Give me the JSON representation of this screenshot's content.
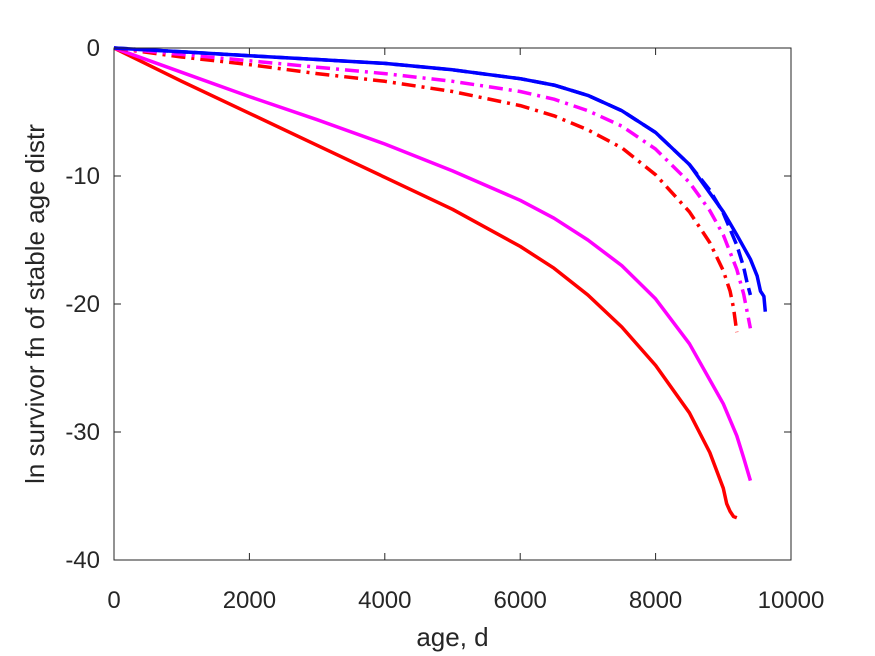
{
  "chart_data": {
    "type": "line",
    "title": "",
    "xlabel": "age, d",
    "ylabel": "ln survivor fn of stable age distr",
    "xlim": [
      0,
      10000
    ],
    "ylim": [
      -40,
      0
    ],
    "xticks": [
      0,
      2000,
      4000,
      6000,
      8000,
      10000
    ],
    "yticks": [
      -40,
      -30,
      -20,
      -10,
      0
    ],
    "xtick_labels": [
      "0",
      "2000",
      "4000",
      "6000",
      "8000",
      "10000"
    ],
    "ytick_labels": [
      "-40",
      "-30",
      "-20",
      "-10",
      "0"
    ],
    "grid": false,
    "legend": "none",
    "series": [
      {
        "color": "#ff0000",
        "style": "solid",
        "x": [
          0,
          1000,
          2000,
          3000,
          4000,
          5000,
          6000,
          6500,
          7000,
          7500,
          8000,
          8500,
          8800,
          9000,
          9050,
          9100,
          9150,
          9200
        ],
        "y": [
          0,
          -2.6,
          -5.1,
          -7.6,
          -10.1,
          -12.6,
          -15.5,
          -17.2,
          -19.3,
          -21.8,
          -24.8,
          -28.5,
          -31.6,
          -34.4,
          -35.6,
          -36.2,
          -36.6,
          -36.7
        ]
      },
      {
        "color": "#ff00ff",
        "style": "solid",
        "x": [
          0,
          1000,
          2000,
          3000,
          4000,
          5000,
          6000,
          6500,
          7000,
          7500,
          8000,
          8500,
          9000,
          9200,
          9300,
          9400
        ],
        "y": [
          0,
          -1.9,
          -3.8,
          -5.6,
          -7.5,
          -9.6,
          -11.9,
          -13.3,
          -15.0,
          -17.0,
          -19.6,
          -23.1,
          -27.8,
          -30.3,
          -32.0,
          -33.8
        ]
      },
      {
        "color": "#ff0000",
        "style": "dashdot",
        "x": [
          0,
          1000,
          2000,
          3000,
          4000,
          5000,
          6000,
          6500,
          7000,
          7500,
          8000,
          8500,
          8800,
          9000,
          9100,
          9150,
          9200
        ],
        "y": [
          0,
          -0.7,
          -1.3,
          -2.0,
          -2.6,
          -3.4,
          -4.5,
          -5.3,
          -6.4,
          -7.8,
          -9.9,
          -12.8,
          -15.2,
          -17.4,
          -19.0,
          -20.3,
          -22.2
        ]
      },
      {
        "color": "#ff00ff",
        "style": "dashdot",
        "x": [
          0,
          1000,
          2000,
          3000,
          4000,
          5000,
          6000,
          6500,
          7000,
          7500,
          8000,
          8500,
          8800,
          9000,
          9200,
          9300,
          9400
        ],
        "y": [
          0,
          -0.5,
          -1.0,
          -1.5,
          -2.0,
          -2.6,
          -3.4,
          -4.0,
          -4.9,
          -6.1,
          -7.9,
          -10.5,
          -12.7,
          -14.6,
          -17.3,
          -19.2,
          -21.9
        ]
      },
      {
        "color": "#0000ff",
        "style": "dashed",
        "x": [
          0,
          1000,
          2000,
          3000,
          4000,
          5000,
          6000,
          6500,
          7000,
          7500,
          8000,
          8500,
          8800,
          9000,
          9200,
          9300,
          9350,
          9400
        ],
        "y": [
          0,
          -0.3,
          -0.6,
          -0.9,
          -1.2,
          -1.7,
          -2.4,
          -2.9,
          -3.7,
          -4.9,
          -6.6,
          -9.1,
          -11.1,
          -12.9,
          -15.4,
          -17.1,
          -18.3,
          -19.3
        ]
      },
      {
        "color": "#0000ff",
        "style": "solid",
        "x": [
          0,
          1000,
          2000,
          3000,
          4000,
          5000,
          6000,
          6500,
          7000,
          7500,
          8000,
          8500,
          9000,
          9200,
          9400,
          9500,
          9550,
          9600,
          9620
        ],
        "y": [
          0,
          -0.3,
          -0.6,
          -0.9,
          -1.2,
          -1.7,
          -2.4,
          -2.9,
          -3.7,
          -4.9,
          -6.6,
          -9.1,
          -12.8,
          -14.6,
          -16.5,
          -17.8,
          -19.0,
          -19.4,
          -20.6
        ]
      }
    ]
  }
}
